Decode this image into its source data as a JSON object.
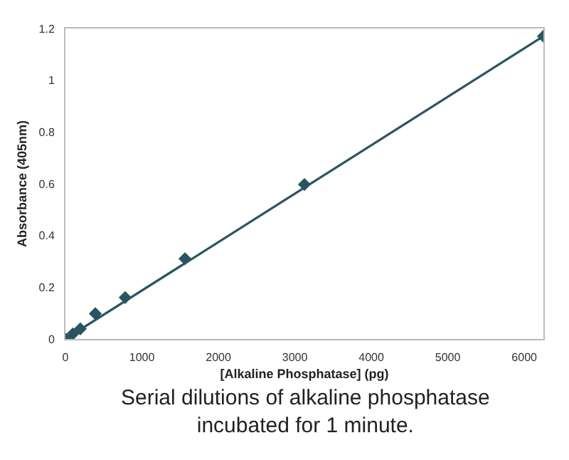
{
  "chart_data": {
    "type": "scatter",
    "xlabel": "[Alkaline Phosphatase] (pg)",
    "ylabel": "Absorbance (405nm)",
    "x": [
      0,
      98,
      195,
      391,
      781,
      1563,
      3125,
      6250
    ],
    "series": [
      {
        "type": "scatter",
        "color": "#2a5560",
        "marker": "diamond",
        "values": [
          0,
          0.02,
          0.039,
          0.098,
          0.16,
          0.31,
          0.597,
          1.17
        ]
      },
      {
        "type": "line",
        "color": "#2a5560",
        "x": [
          0,
          6250
        ],
        "values": [
          0,
          1.17
        ],
        "line_style": "solid"
      }
    ],
    "xlim": [
      0,
      6250
    ],
    "xticks": [
      0,
      1000,
      2000,
      3000,
      4000,
      5000,
      6000
    ],
    "ylim": [
      0,
      1.2
    ],
    "yticks": [
      0,
      0.2,
      0.4,
      0.6,
      0.8,
      1,
      1.2
    ],
    "annotations": [
      "Serial dilutions of alkaline phosphatase incubated for 1 minute."
    ]
  }
}
